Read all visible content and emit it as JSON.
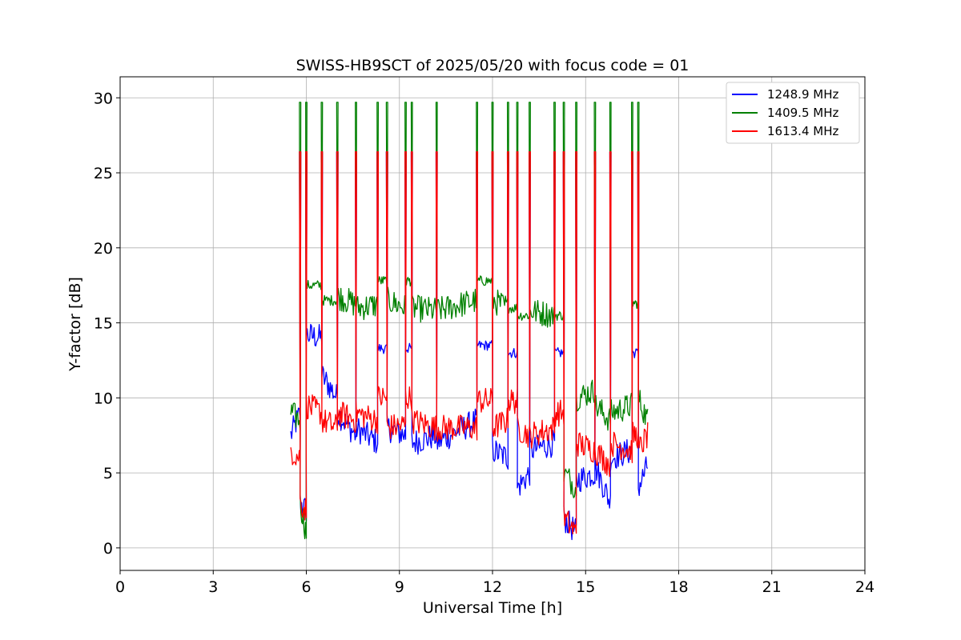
{
  "chart_data": {
    "type": "line",
    "title": "SWISS-HB9SCT of 2025/05/20 with focus code = 01",
    "xlabel": "Universal Time [h]",
    "ylabel": "Y-factor [dB]",
    "xlim": [
      0,
      24
    ],
    "ylim": [
      -1.5,
      31.4
    ],
    "xticks": [
      0,
      3,
      6,
      9,
      12,
      15,
      18,
      21,
      24
    ],
    "xtick_labels": [
      "0",
      "3",
      "6",
      "9",
      "12",
      "15",
      "18",
      "21",
      "24"
    ],
    "yticks": [
      0,
      5,
      10,
      15,
      20,
      25,
      30
    ],
    "ytick_labels": [
      "0",
      "5",
      "10",
      "15",
      "20",
      "25",
      "30"
    ],
    "grid": true,
    "legend_position": "top-right",
    "data_start_h": 5.5,
    "data_end_h": 17.0,
    "series": [
      {
        "name": "1248.9 MHz",
        "color": "#0000ff",
        "spike_peak": 26.4,
        "segments": [
          {
            "x": [
              5.5,
              5.8
            ],
            "y": [
              7.5,
              9.0
            ]
          },
          {
            "x": [
              5.8,
              6.0
            ],
            "y": [
              3.0,
              2.5
            ]
          },
          {
            "x": [
              6.0,
              6.5
            ],
            "y": [
              14.2,
              14.0
            ]
          },
          {
            "x": [
              6.5,
              7.0
            ],
            "y": [
              11.5,
              10.0
            ]
          },
          {
            "x": [
              7.0,
              7.6
            ],
            "y": [
              9.0,
              7.5
            ]
          },
          {
            "x": [
              7.6,
              8.3
            ],
            "y": [
              8.0,
              7.0
            ]
          },
          {
            "x": [
              8.3,
              8.6
            ],
            "y": [
              13.3,
              13.3
            ]
          },
          {
            "x": [
              8.6,
              9.2
            ],
            "y": [
              8.0,
              7.5
            ]
          },
          {
            "x": [
              9.2,
              9.4
            ],
            "y": [
              13.3,
              13.3
            ]
          },
          {
            "x": [
              9.4,
              10.2
            ],
            "y": [
              7.0,
              7.5
            ]
          },
          {
            "x": [
              10.2,
              11.5
            ],
            "y": [
              7.0,
              8.5
            ]
          },
          {
            "x": [
              11.5,
              12.0
            ],
            "y": [
              13.5,
              13.5
            ]
          },
          {
            "x": [
              12.0,
              12.5
            ],
            "y": [
              6.5,
              6.0
            ]
          },
          {
            "x": [
              12.5,
              12.8
            ],
            "y": [
              13.0,
              13.0
            ]
          },
          {
            "x": [
              12.8,
              13.2
            ],
            "y": [
              4.0,
              5.0
            ]
          },
          {
            "x": [
              13.2,
              14.0
            ],
            "y": [
              6.5,
              7.0
            ]
          },
          {
            "x": [
              14.0,
              14.3
            ],
            "y": [
              13.0,
              13.0
            ]
          },
          {
            "x": [
              14.3,
              14.7
            ],
            "y": [
              2.0,
              1.0
            ]
          },
          {
            "x": [
              14.7,
              15.3
            ],
            "y": [
              4.5,
              5.0
            ]
          },
          {
            "x": [
              15.3,
              15.8
            ],
            "y": [
              5.5,
              3.0
            ]
          },
          {
            "x": [
              15.8,
              16.5
            ],
            "y": [
              6.0,
              6.5
            ]
          },
          {
            "x": [
              16.5,
              16.7
            ],
            "y": [
              13.0,
              13.0
            ]
          },
          {
            "x": [
              16.7,
              17.0
            ],
            "y": [
              4.0,
              5.5
            ]
          }
        ]
      },
      {
        "name": "1409.5 MHz",
        "color": "#008000",
        "spike_peak": 29.7,
        "segments": [
          {
            "x": [
              5.5,
              5.8
            ],
            "y": [
              9.0,
              8.5
            ]
          },
          {
            "x": [
              5.8,
              6.0
            ],
            "y": [
              3.0,
              1.0
            ]
          },
          {
            "x": [
              6.0,
              6.5
            ],
            "y": [
              17.5,
              17.5
            ]
          },
          {
            "x": [
              6.5,
              7.0
            ],
            "y": [
              16.5,
              16.5
            ]
          },
          {
            "x": [
              7.0,
              7.6
            ],
            "y": [
              16.8,
              16.2
            ]
          },
          {
            "x": [
              7.6,
              8.3
            ],
            "y": [
              16.0,
              16.2
            ]
          },
          {
            "x": [
              8.3,
              8.6
            ],
            "y": [
              17.8,
              17.8
            ]
          },
          {
            "x": [
              8.6,
              9.2
            ],
            "y": [
              16.5,
              16.0
            ]
          },
          {
            "x": [
              9.2,
              9.4
            ],
            "y": [
              17.8,
              17.8
            ]
          },
          {
            "x": [
              9.4,
              10.2
            ],
            "y": [
              16.0,
              15.8
            ]
          },
          {
            "x": [
              10.2,
              11.5
            ],
            "y": [
              15.8,
              16.5
            ]
          },
          {
            "x": [
              11.5,
              12.0
            ],
            "y": [
              17.8,
              17.8
            ]
          },
          {
            "x": [
              12.0,
              12.5
            ],
            "y": [
              16.5,
              16.0
            ]
          },
          {
            "x": [
              12.5,
              12.8
            ],
            "y": [
              16.0,
              16.0
            ]
          },
          {
            "x": [
              12.8,
              13.2
            ],
            "y": [
              15.5,
              15.5
            ]
          },
          {
            "x": [
              13.2,
              14.0
            ],
            "y": [
              15.8,
              15.5
            ]
          },
          {
            "x": [
              14.0,
              14.3
            ],
            "y": [
              15.5,
              15.5
            ]
          },
          {
            "x": [
              14.3,
              14.7
            ],
            "y": [
              5.0,
              4.0
            ]
          },
          {
            "x": [
              14.7,
              15.3
            ],
            "y": [
              10.0,
              10.5
            ]
          },
          {
            "x": [
              15.3,
              15.8
            ],
            "y": [
              9.5,
              8.5
            ]
          },
          {
            "x": [
              15.8,
              16.5
            ],
            "y": [
              9.0,
              9.5
            ]
          },
          {
            "x": [
              16.5,
              16.7
            ],
            "y": [
              16.3,
              16.3
            ]
          },
          {
            "x": [
              16.7,
              17.0
            ],
            "y": [
              10.0,
              8.5
            ]
          }
        ]
      },
      {
        "name": "1613.4 MHz",
        "color": "#ff0000",
        "spike_peak": 26.4,
        "segments": [
          {
            "x": [
              5.5,
              5.8
            ],
            "y": [
              6.5,
              6.0
            ]
          },
          {
            "x": [
              5.8,
              6.0
            ],
            "y": [
              3.0,
              2.5
            ]
          },
          {
            "x": [
              6.0,
              6.5
            ],
            "y": [
              9.5,
              9.0
            ]
          },
          {
            "x": [
              6.5,
              7.0
            ],
            "y": [
              8.5,
              8.0
            ]
          },
          {
            "x": [
              7.0,
              7.6
            ],
            "y": [
              9.0,
              8.5
            ]
          },
          {
            "x": [
              7.6,
              8.3
            ],
            "y": [
              9.0,
              8.5
            ]
          },
          {
            "x": [
              8.3,
              8.6
            ],
            "y": [
              10.0,
              10.0
            ]
          },
          {
            "x": [
              8.6,
              9.2
            ],
            "y": [
              8.0,
              8.2
            ]
          },
          {
            "x": [
              9.2,
              9.4
            ],
            "y": [
              10.0,
              10.0
            ]
          },
          {
            "x": [
              9.4,
              10.2
            ],
            "y": [
              8.5,
              8.0
            ]
          },
          {
            "x": [
              10.2,
              11.5
            ],
            "y": [
              8.0,
              8.0
            ]
          },
          {
            "x": [
              11.5,
              12.0
            ],
            "y": [
              9.8,
              9.8
            ]
          },
          {
            "x": [
              12.0,
              12.5
            ],
            "y": [
              8.0,
              8.5
            ]
          },
          {
            "x": [
              12.5,
              12.8
            ],
            "y": [
              9.8,
              9.8
            ]
          },
          {
            "x": [
              12.8,
              13.2
            ],
            "y": [
              8.0,
              7.5
            ]
          },
          {
            "x": [
              13.2,
              14.0
            ],
            "y": [
              7.5,
              8.0
            ]
          },
          {
            "x": [
              14.0,
              14.3
            ],
            "y": [
              9.0,
              9.0
            ]
          },
          {
            "x": [
              14.3,
              14.7
            ],
            "y": [
              2.0,
              1.0
            ]
          },
          {
            "x": [
              14.7,
              15.3
            ],
            "y": [
              7.0,
              6.5
            ]
          },
          {
            "x": [
              15.3,
              15.8
            ],
            "y": [
              6.5,
              5.5
            ]
          },
          {
            "x": [
              15.8,
              16.5
            ],
            "y": [
              7.0,
              6.5
            ]
          },
          {
            "x": [
              16.5,
              16.7
            ],
            "y": [
              7.5,
              7.5
            ]
          },
          {
            "x": [
              16.7,
              17.0
            ],
            "y": [
              6.5,
              7.5
            ]
          }
        ]
      }
    ]
  }
}
